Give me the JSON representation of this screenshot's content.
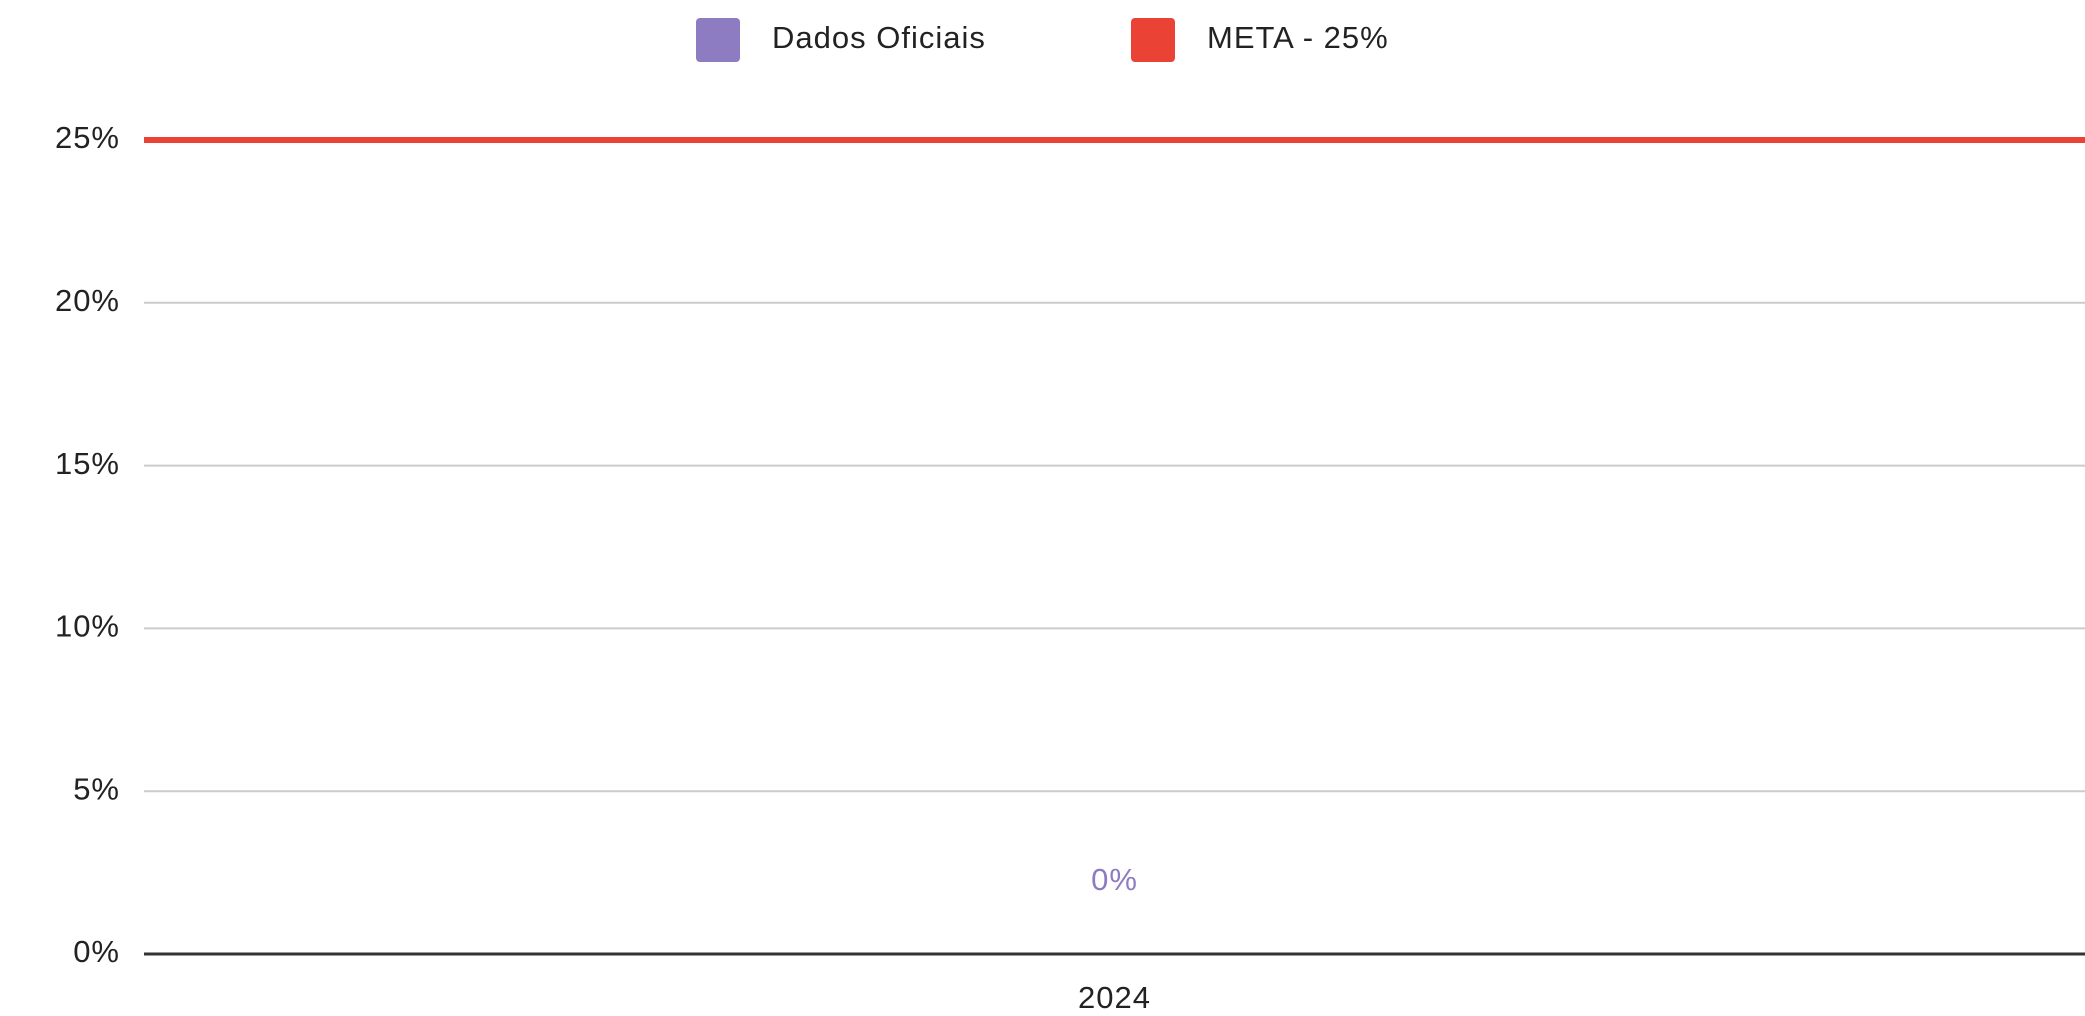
{
  "chart_data": {
    "type": "bar",
    "categories": [
      "2024"
    ],
    "series": [
      {
        "name": "Dados Oficiais",
        "type": "bar",
        "color": "#8e7cc3",
        "values": [
          0
        ],
        "value_labels": [
          "0%"
        ]
      },
      {
        "name": "META - 25%",
        "type": "line",
        "color": "#ea4335",
        "values": [
          25
        ]
      }
    ],
    "ylim": [
      0,
      25
    ],
    "yticks": [
      {
        "value": 0,
        "label": "0%"
      },
      {
        "value": 5,
        "label": "5%"
      },
      {
        "value": 10,
        "label": "10%"
      },
      {
        "value": 15,
        "label": "15%"
      },
      {
        "value": 20,
        "label": "20%"
      },
      {
        "value": 25,
        "label": "25%"
      }
    ],
    "grid": true,
    "legend": "top"
  }
}
